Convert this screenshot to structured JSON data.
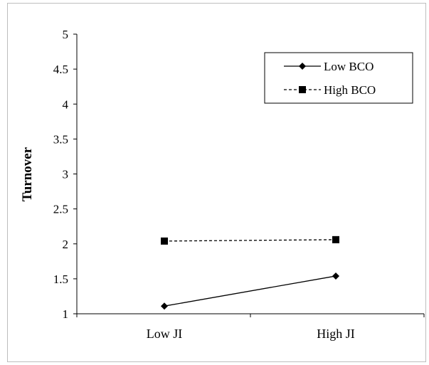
{
  "chart_data": {
    "type": "line",
    "title": "",
    "xlabel": "",
    "ylabel": "Turnover",
    "categories": [
      "Low JI",
      "High JI"
    ],
    "ylim": [
      1,
      5
    ],
    "yticks": [
      "1",
      "1.5",
      "2",
      "2.5",
      "3",
      "3.5",
      "4",
      "4.5",
      "5"
    ],
    "grid": false,
    "legend_position": "top-right",
    "series": [
      {
        "name": "Low BCO",
        "values": [
          1.11,
          1.54
        ],
        "marker": "diamond",
        "line_style": "solid",
        "color": "#000000"
      },
      {
        "name": "High BCO",
        "values": [
          2.04,
          2.06
        ],
        "marker": "square",
        "line_style": "dashed",
        "color": "#000000"
      }
    ]
  }
}
